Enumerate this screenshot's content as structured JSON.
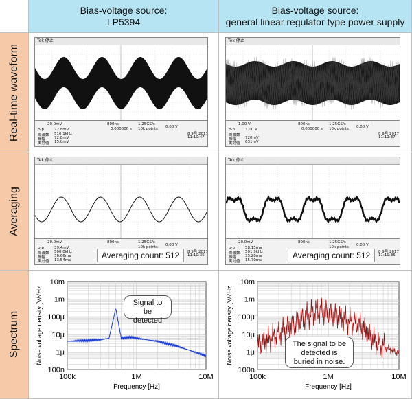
{
  "headers": {
    "left": "Bias-voltage source:\nLP5394",
    "right": "Bias-voltage source:\ngeneral linear regulator type power supply"
  },
  "rows": {
    "realtime": "Real-time waveform",
    "averaging": "Averaging",
    "spectrum": "Spectrum"
  },
  "scope": {
    "top_label": "Tek 停止",
    "left_rt": {
      "ch": "20.0mV",
      "time": "800ns",
      "rate": "1.25GS/s",
      "points": "10k points",
      "trig": "0.00 V",
      "offset": "0.000000 s",
      "date": "8 9月 2017",
      "clock": "11:10:47",
      "m1": "72.8mV",
      "m2": "510.1kHz",
      "m3": "72.8mV",
      "m4": "15.0mV"
    },
    "right_rt": {
      "ch": "1.00 V",
      "time": "800ns",
      "rate": "1.25GS/s",
      "points": "10k points",
      "trig": "0.00 V",
      "offset": "0.000000 s",
      "date": "8 9月 2017",
      "clock": "11:11:37",
      "m1": "3.00 V",
      "m2": "",
      "m3": "720mV",
      "m4": "631mV"
    },
    "left_avg": {
      "ch": "20.0mV",
      "time": "800ns",
      "rate": "1.25GS/s",
      "points": "10k points",
      "trig": "0.00 V",
      "date": "8 9月 2017",
      "clock": "11:10:35",
      "m1": "39.4mV",
      "m2": "500.0kHz",
      "m3": "36.66mV",
      "m4": "13.54mV"
    },
    "right_avg": {
      "ch": "20.0mV",
      "time": "800ns",
      "rate": "1.25GS/s",
      "points": "10k points",
      "trig": "0.00 V",
      "date": "8 9月 2017",
      "clock": "11:19:35",
      "m1": "58.15mV",
      "m2": "501.9kHz",
      "m3": "35.20mV",
      "m4": "15.70mV"
    },
    "meas_names": [
      "p-p",
      "周波数",
      "振幅",
      "実効値"
    ],
    "averaging_count": "Averaging count: 512"
  },
  "spectrum": {
    "ylabel": "Noise voltage density [V/√Hz",
    "xlabel": "Frequency [Hz]",
    "yticks": [
      "10m",
      "1m",
      "100μ",
      "10μ",
      "1μ",
      "100n"
    ],
    "xticks": [
      "100k",
      "1M",
      "10M"
    ],
    "left_callout": "Signal to be\ndetected",
    "right_callout": "The signal to be\ndetected is\nburied in noise.",
    "left_color": "#1f3fd6",
    "right_color": "#9e1010"
  },
  "chart_data": [
    {
      "type": "line",
      "x": [
        100000,
        200000,
        300000,
        400000,
        500000,
        600000,
        800000,
        1000000,
        2000000,
        4000000,
        10000000
      ],
      "series": [
        {
          "values": [
            4e-06,
            4.5e-06,
            5e-06,
            6e-06,
            0.0003,
            6e-06,
            7e-06,
            6e-06,
            4e-06,
            2e-06,
            6e-07
          ]
        }
      ],
      "xlabel": "Frequency [Hz]",
      "ylabel": "Noise voltage density [V/√Hz",
      "xlim": [
        100000,
        10000000
      ],
      "ylim": [
        1e-07,
        0.01
      ],
      "scale": "log-log"
    },
    {
      "type": "line",
      "x": [
        100000,
        200000,
        300000,
        500000,
        700000,
        1000000,
        2000000,
        3000000,
        5000000,
        10000000
      ],
      "series": [
        {
          "values": [
            4e-06,
            2e-05,
            5e-05,
            0.0002,
            0.0004,
            0.0003,
            0.0001,
            5e-05,
            5e-06,
            1.5e-06
          ]
        }
      ],
      "xlabel": "Frequency [Hz]",
      "ylabel": "Noise voltage density [V/√Hz",
      "xlim": [
        100000,
        10000000
      ],
      "ylim": [
        1e-07,
        0.01
      ],
      "scale": "log-log"
    }
  ]
}
